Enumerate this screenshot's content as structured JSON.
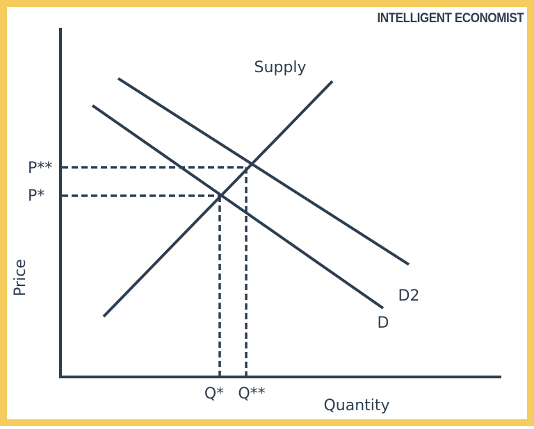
{
  "brand": "INTELLIGENT ECONOMIST",
  "curves": {
    "supply": "Supply",
    "demand": "D",
    "demand2": "D2"
  },
  "axes": {
    "x_label": "Quantity",
    "y_label": "Price"
  },
  "prices": {
    "p1": "P*",
    "p2": "P**"
  },
  "quantities": {
    "q1": "Q*",
    "q2": "Q**"
  }
}
